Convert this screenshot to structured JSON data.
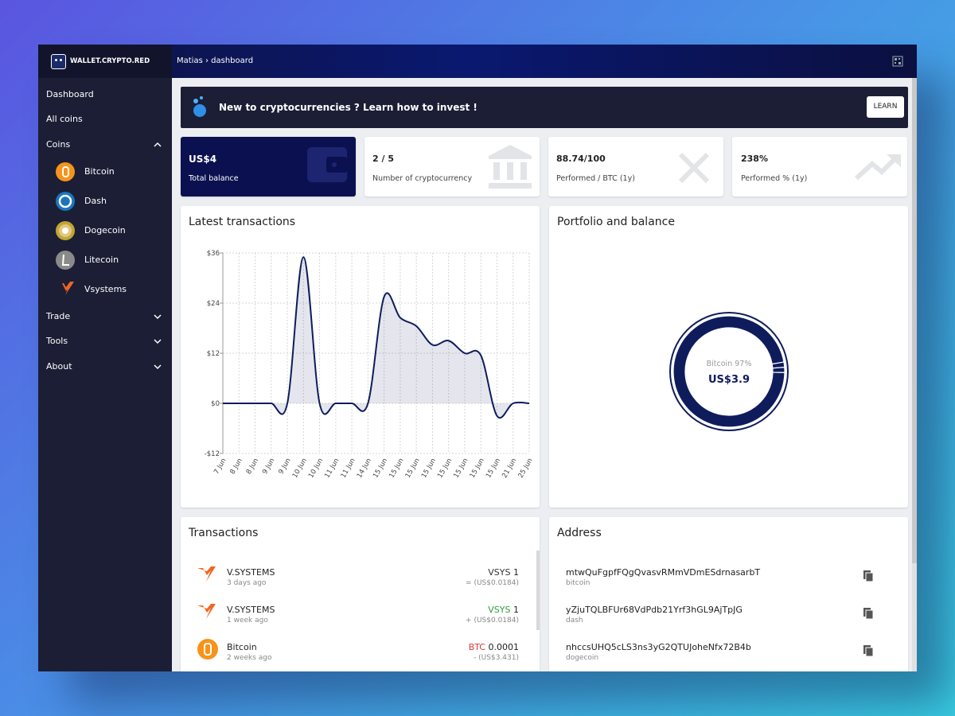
{
  "brand": "WALLET.CRYPTO.RED",
  "breadcrumb": "Matias › dashboard",
  "nav": [
    "Dashboard",
    "All coins",
    "Coins",
    "Bitcoin",
    "Dash",
    "Dogecoin",
    "Litecoin",
    "Vsystems",
    "Trade",
    "Tools",
    "About"
  ],
  "banner": {
    "text": "New to cryptocurrencies ? Learn how to invest !",
    "button": "LEARN"
  },
  "stats": [
    {
      "value": "US$4",
      "label": "Total balance"
    },
    {
      "value": "2 / 5",
      "label": "Number of cryptocurrency"
    },
    {
      "value": "88.74/100",
      "label": "Performed / BTC (1y)"
    },
    {
      "value": "238%",
      "label": "Performed % (1y)"
    }
  ],
  "chart_data": [
    {
      "type": "line",
      "title": "Latest transactions",
      "categories": [
        "7 Jun",
        "8 Jun",
        "8 Jun",
        "9 Jun",
        "9 Jun",
        "10 Jun",
        "10 Jun",
        "11 Jun",
        "11 Jun",
        "14 Jun",
        "15 Jun",
        "15 Jun",
        "15 Jun",
        "15 Jun",
        "15 Jun",
        "15 Jun",
        "15 Jun",
        "15 Jun",
        "21 Jun",
        "25 Jun"
      ],
      "series": [
        {
          "color": "#0f1c5c",
          "values": [
            0,
            0,
            0,
            0,
            0,
            35,
            0,
            0,
            0,
            0,
            25.5,
            20.5,
            18.5,
            14,
            15,
            12,
            11.5,
            -3,
            0,
            0
          ]
        }
      ],
      "ylim": [
        -12,
        36
      ],
      "yticks": [
        {
          "value": -12,
          "label": "-$12"
        },
        {
          "value": 0,
          "label": "$0"
        },
        {
          "value": 12,
          "label": "$12"
        },
        {
          "value": 24,
          "label": "$24"
        },
        {
          "value": 36,
          "label": "$36"
        }
      ],
      "grid": true
    },
    {
      "type": "donut",
      "title": "Portfolio and balance",
      "center_label": "Bitcoin 97%",
      "center_value": "US$3.9",
      "values": [
        97,
        1.5,
        1.5
      ],
      "color": "#0f1c5c"
    }
  ],
  "transactions": {
    "title": "Transactions",
    "items": [
      {
        "name": "V.SYSTEMS",
        "time": "3 days ago",
        "currency": "VSYS",
        "amount": "1",
        "usd": "= (US$0.0184)",
        "color": "#333333"
      },
      {
        "name": "V.SYSTEMS",
        "time": "1 week ago",
        "currency": "VSYS",
        "amount": "1",
        "usd": "+ (US$0.0184)",
        "color": "#2e9e3e"
      },
      {
        "name": "Bitcoin",
        "time": "2 weeks ago",
        "currency": "BTC",
        "amount": "0.0001",
        "usd": "- (US$3.431)",
        "color": "#d63b3b"
      }
    ]
  },
  "address": {
    "title": "Address",
    "items": [
      {
        "address": "mtwQuFgpfFQgQvasvRMmVDmESdrnasarbT",
        "coin": "bitcoin"
      },
      {
        "address": "yZjuTQLBFUr68VdPdb21Yrf3hGL9AjTpJG",
        "coin": "dash"
      },
      {
        "address": "nhccsUHQ5cLS3ns3yG2QTUJoheNfx72B4b",
        "coin": "dogecoin"
      }
    ]
  }
}
